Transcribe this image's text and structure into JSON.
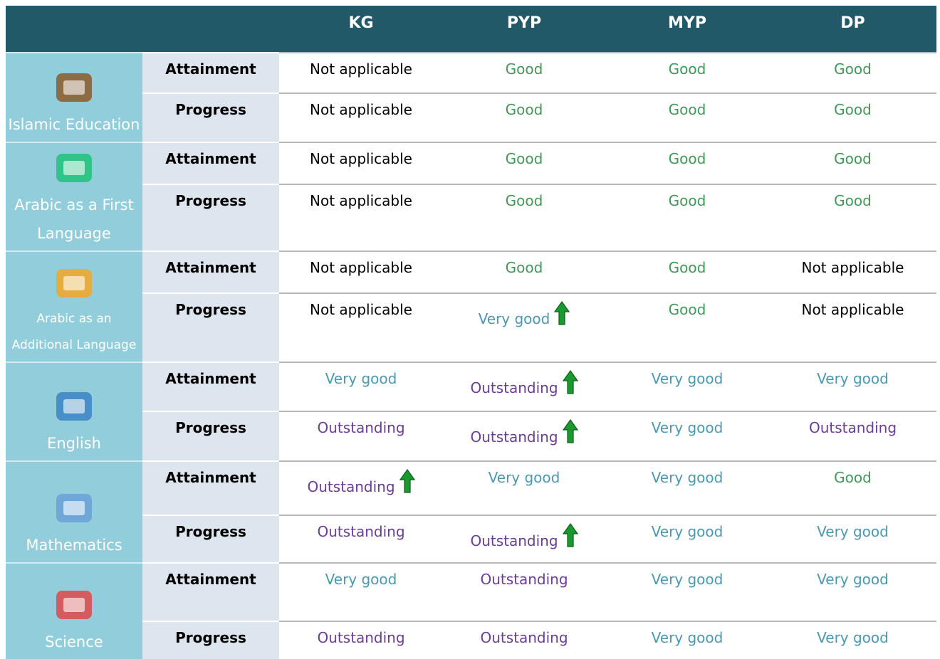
{
  "header": {
    "columns": [
      "KG",
      "PYP",
      "MYP",
      "DP"
    ]
  },
  "subjects": [
    {
      "name": "Islamic Education",
      "rows": [
        {
          "label": "Attainment",
          "values": [
            "Not applicable",
            "Good",
            "Good",
            "Good"
          ]
        },
        {
          "label": "Progress",
          "values": [
            "Not applicable",
            "Good",
            "Good",
            "Good"
          ]
        }
      ]
    },
    {
      "name": "Arabic as a First Language",
      "rows": [
        {
          "label": "Attainment",
          "values": [
            "Not applicable",
            "Good",
            "Good",
            "Good"
          ]
        },
        {
          "label": "Progress",
          "values": [
            "Not applicable",
            "Good",
            "Good",
            "Good"
          ]
        }
      ]
    },
    {
      "name": "Arabic as an Additional Language",
      "rows": [
        {
          "label": "Attainment",
          "values": [
            "Not applicable",
            "Good",
            "Good",
            "Not applicable"
          ]
        },
        {
          "label": "Progress",
          "values": [
            "Not applicable",
            "Very good",
            "Good",
            "Not applicable"
          ]
        }
      ]
    },
    {
      "name": "English",
      "rows": [
        {
          "label": "Attainment",
          "values": [
            "Very good",
            "Outstanding",
            "Very good",
            "Very good"
          ]
        },
        {
          "label": "Progress",
          "values": [
            "Outstanding",
            "Outstanding",
            "Very good",
            "Outstanding"
          ]
        }
      ]
    },
    {
      "name": "Mathematics",
      "rows": [
        {
          "label": "Attainment",
          "values": [
            "Outstanding",
            "Very good",
            "Very good",
            "Good"
          ]
        },
        {
          "label": "Progress",
          "values": [
            "Outstanding",
            "Outstanding",
            "Very good",
            "Very good"
          ]
        }
      ]
    },
    {
      "name": "Science",
      "rows": [
        {
          "label": "Attainment",
          "values": [
            "Very good",
            "Outstanding",
            "Very good",
            "Very good"
          ]
        },
        {
          "label": "Progress",
          "values": [
            "Outstanding",
            "Outstanding",
            "Very good",
            "Very good"
          ]
        }
      ]
    }
  ]
}
